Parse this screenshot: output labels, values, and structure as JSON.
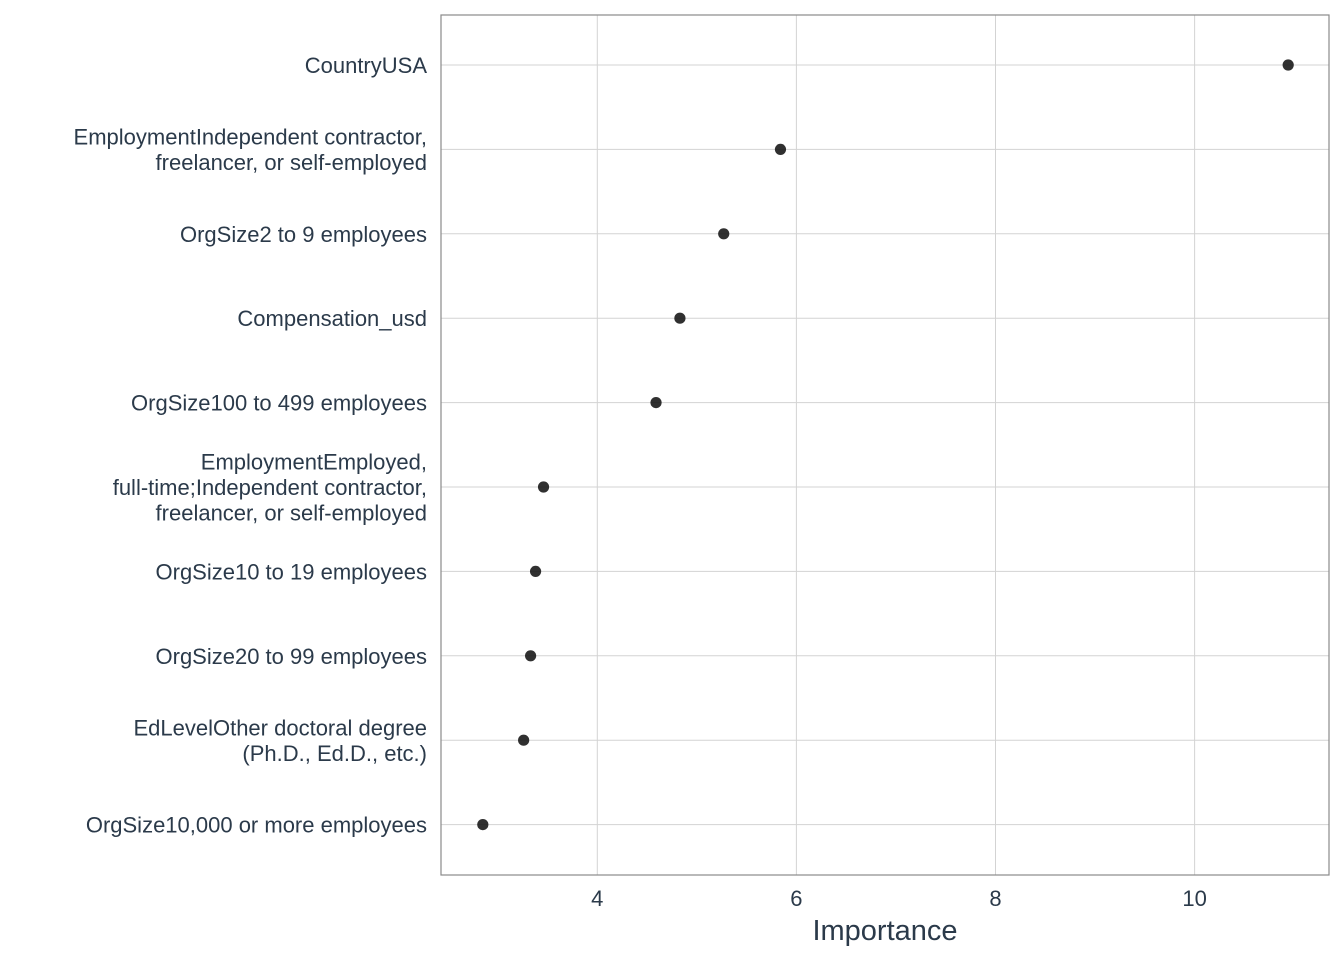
{
  "chart_data": {
    "type": "scatter",
    "title": "",
    "xlabel": "Importance",
    "ylabel": "",
    "xlim": [
      2.43,
      11.35
    ],
    "xticks": [
      4,
      6,
      8,
      10
    ],
    "grid": true,
    "point_color": "#1a1a1a",
    "categories": [
      "CountryUSA",
      "EmploymentIndependent contractor,\nfreelancer, or self-employed",
      "OrgSize2 to 9 employees",
      "Compensation_usd",
      "OrgSize100 to 499 employees",
      "EmploymentEmployed,\nfull-time;Independent contractor,\nfreelancer, or self-employed",
      "OrgSize10 to 19 employees",
      "OrgSize20 to 99 employees",
      "EdLevelOther doctoral degree\n(Ph.D., Ed.D., etc.)",
      "OrgSize10,000 or more employees"
    ],
    "values": [
      10.94,
      5.84,
      5.27,
      4.83,
      4.59,
      3.46,
      3.38,
      3.33,
      3.26,
      2.85
    ]
  }
}
